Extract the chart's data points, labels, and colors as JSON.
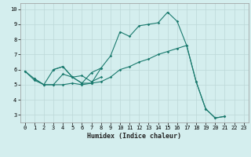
{
  "xlabel": "Humidex (Indice chaleur)",
  "xlim": [
    -0.5,
    23.5
  ],
  "ylim": [
    2.5,
    10.4
  ],
  "yticks": [
    3,
    4,
    5,
    6,
    7,
    8,
    9,
    10
  ],
  "xticks": [
    0,
    1,
    2,
    3,
    4,
    5,
    6,
    7,
    8,
    9,
    10,
    11,
    12,
    13,
    14,
    15,
    16,
    17,
    18,
    19,
    20,
    21,
    22,
    23
  ],
  "background_color": "#d4eeee",
  "line_color": "#1a7a6e",
  "grid_color": "#bcd8d8",
  "series": [
    {
      "x": [
        0,
        1,
        2,
        3,
        4,
        5,
        6,
        7,
        8,
        9,
        10,
        11,
        12,
        13,
        14,
        15,
        16,
        17,
        18,
        19,
        20,
        21
      ],
      "y": [
        5.9,
        5.4,
        5.0,
        6.0,
        6.2,
        5.5,
        5.1,
        5.8,
        6.1,
        6.9,
        8.5,
        8.2,
        8.9,
        9.0,
        9.1,
        9.8,
        9.2,
        7.6,
        5.2,
        3.4,
        2.8,
        2.9
      ]
    },
    {
      "x": [
        0,
        1,
        2,
        3,
        4,
        5,
        6,
        7,
        8,
        9,
        10,
        11,
        12,
        13,
        14,
        15,
        16,
        17,
        18,
        19,
        20,
        21
      ],
      "y": [
        5.9,
        5.3,
        5.0,
        5.0,
        5.0,
        5.1,
        5.0,
        5.1,
        5.2,
        5.5,
        6.0,
        6.2,
        6.5,
        6.7,
        7.0,
        7.2,
        7.4,
        7.6,
        5.2,
        3.4,
        2.8,
        2.9
      ]
    },
    {
      "x": [
        1,
        2,
        3,
        4,
        5,
        6,
        7,
        8
      ],
      "y": [
        5.4,
        5.0,
        5.0,
        5.7,
        5.5,
        5.6,
        5.2,
        5.5
      ]
    },
    {
      "x": [
        3,
        4,
        5,
        6,
        7,
        8
      ],
      "y": [
        6.0,
        6.2,
        5.5,
        5.1,
        5.1,
        6.1
      ]
    }
  ]
}
